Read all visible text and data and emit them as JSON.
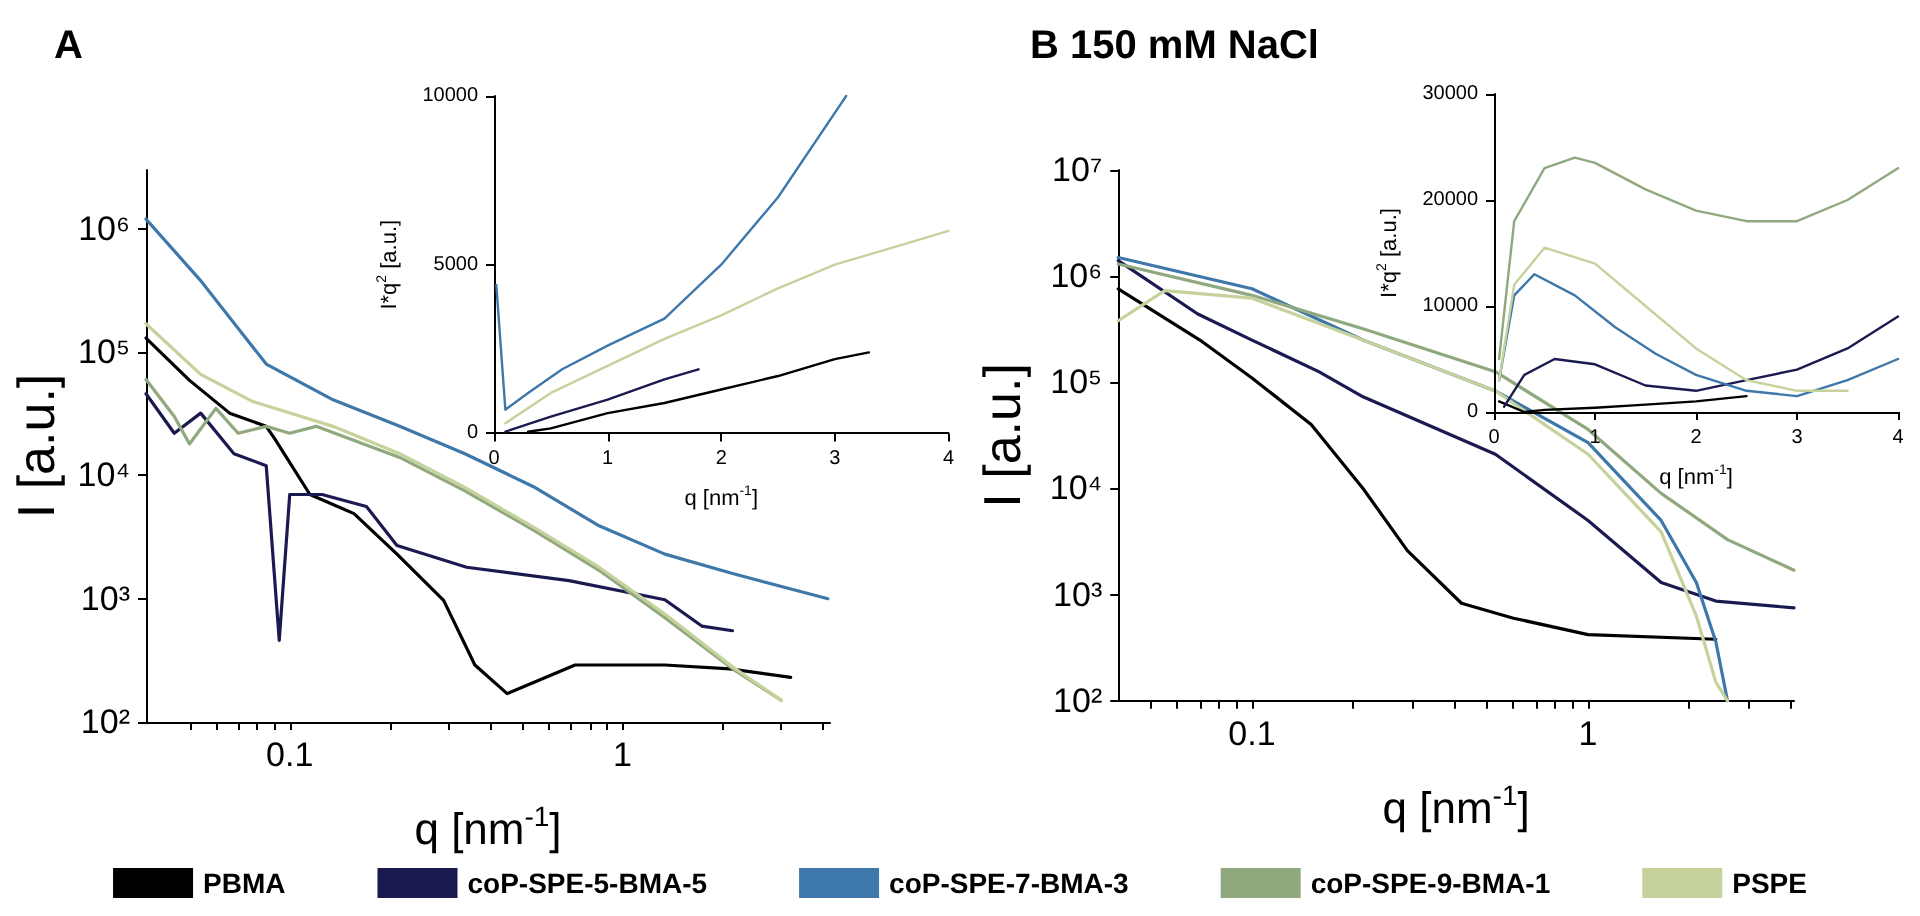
{
  "chart_data": [
    {
      "type": "line",
      "title": "A",
      "xlabel": "q [nm$^{-1}$]",
      "ylabel": "I [a.u.]",
      "log": "xy",
      "grid": false,
      "marker": "none",
      "legend": "bottom",
      "xlim": [
        0.037,
        4.2
      ],
      "ylim": [
        100,
        3000000
      ],
      "xticks": [
        {
          "value": 0.05,
          "label": null
        },
        {
          "value": 0.06,
          "label": null
        },
        {
          "value": 0.07,
          "label": null
        },
        {
          "value": 0.08,
          "label": null
        },
        {
          "value": 0.09,
          "label": null
        },
        0.1,
        {
          "value": 0.2,
          "label": null
        },
        {
          "value": 0.3,
          "label": null
        },
        {
          "value": 0.4,
          "label": null
        },
        {
          "value": 0.5,
          "label": null
        },
        {
          "value": 0.6,
          "label": null
        },
        {
          "value": 0.7,
          "label": null
        },
        {
          "value": 0.8,
          "label": null
        },
        {
          "value": 0.9,
          "label": null
        },
        1,
        {
          "value": 2,
          "label": null
        },
        {
          "value": 3,
          "label": null
        },
        {
          "value": 4,
          "label": null
        }
      ],
      "yticks": [
        {
          "value": 100,
          "label": "10²"
        },
        {
          "value": 1000,
          "label": "10³"
        },
        {
          "value": 10000,
          "label": "10⁴"
        },
        {
          "value": 100000,
          "label": "10⁵"
        },
        {
          "value": 1000000,
          "label": "10⁶"
        }
      ],
      "series": [
        {
          "name": "PBMA",
          "color": "#000000",
          "x": [
            0.037,
            0.05,
            0.066,
            0.085,
            0.09,
            0.115,
            0.156,
            0.21,
            0.29,
            0.36,
            0.45,
            0.72,
            1.34,
            2.1,
            3.2
          ],
          "values": [
            130000,
            59000,
            32000,
            25000,
            20000,
            7000,
            4900,
            2300,
            970,
            290,
            170,
            290,
            290,
            270,
            230
          ]
        },
        {
          "name": "coP-SPE-5-BMA-5",
          "color": "#1b1a50",
          "x": [
            0.037,
            0.045,
            0.054,
            0.068,
            0.085,
            0.093,
            0.1,
            0.125,
            0.17,
            0.21,
            0.34,
            0.69,
            1.34,
            1.73,
            2.14
          ],
          "values": [
            46000,
            22000,
            32000,
            15000,
            12000,
            460,
            7000,
            7000,
            5600,
            2700,
            1800,
            1400,
            980,
            600,
            550
          ]
        },
        {
          "name": "coP-SPE-7-BMA-3",
          "color": "#3e77a9",
          "x": [
            0.037,
            0.054,
            0.085,
            0.135,
            0.214,
            0.336,
            0.54,
            0.85,
            1.34,
            2.14,
            4.14
          ],
          "values": [
            1200000,
            380000,
            80000,
            41000,
            25000,
            15000,
            8100,
            3900,
            2300,
            1600,
            1000
          ]
        },
        {
          "name": "coP-SPE-9-BMA-1",
          "color": "#8fa87e",
          "x": [
            0.037,
            0.045,
            0.05,
            0.06,
            0.07,
            0.085,
            0.1,
            0.12,
            0.214,
            0.336,
            0.54,
            0.85,
            1.34,
            2.14,
            3.0
          ],
          "values": [
            60000,
            30000,
            18000,
            35000,
            22000,
            25000,
            22000,
            25000,
            14000,
            7500,
            3600,
            1700,
            700,
            270,
            150
          ]
        },
        {
          "name": "PSPE",
          "color": "#c6d29c",
          "x": [
            0.037,
            0.054,
            0.077,
            0.135,
            0.214,
            0.336,
            0.54,
            0.85,
            1.34,
            2.14,
            3.0
          ],
          "values": [
            170000,
            66000,
            40000,
            25000,
            15000,
            8000,
            3800,
            1800,
            750,
            280,
            150
          ]
        }
      ]
    },
    {
      "type": "line",
      "xlabel": "q [nm$^{-1}$]",
      "ylabel": "I*q$^{2}$ [a.u.]",
      "grid": false,
      "marker": "none",
      "xlim": [
        0,
        4
      ],
      "ylim": [
        0,
        10000
      ],
      "xticks": [
        0,
        1,
        2,
        3,
        4
      ],
      "yticks": [
        0,
        5000,
        10000
      ],
      "series": [
        {
          "color": "#000000",
          "x": [
            0.3,
            0.5,
            1,
            1.5,
            2,
            2.5,
            3,
            3.3
          ],
          "values": [
            50,
            150,
            600,
            900,
            1300,
            1700,
            2200,
            2400
          ]
        },
        {
          "color": "#1b1a50",
          "x": [
            0.1,
            0.5,
            1,
            1.5,
            1.8
          ],
          "values": [
            50,
            500,
            1000,
            1600,
            1900
          ]
        },
        {
          "color": "#3e77a9",
          "x": [
            0.02,
            0.1,
            0.3,
            0.6,
            1,
            1.5,
            2,
            2.5,
            3,
            3.1
          ],
          "values": [
            4400,
            700,
            1200,
            1900,
            2600,
            3400,
            5000,
            7000,
            9500,
            10000
          ]
        },
        {
          "color": "#c6d29c",
          "x": [
            0.1,
            0.5,
            1,
            1.5,
            2,
            2.5,
            3,
            3.5,
            4
          ],
          "values": [
            300,
            1200,
            2000,
            2800,
            3500,
            4300,
            5000,
            5500,
            6000
          ]
        }
      ]
    },
    {
      "type": "line",
      "title": "B 150 mM NaCl",
      "xlabel": "q [nm$^{-1}$]",
      "ylabel": "I [a.u.]",
      "log": "xy",
      "grid": false,
      "marker": "none",
      "xlim": [
        0.04,
        4.1
      ],
      "ylim": [
        100,
        10000000
      ],
      "xticks": [
        {
          "value": 0.05,
          "label": null
        },
        {
          "value": 0.06,
          "label": null
        },
        {
          "value": 0.07,
          "label": null
        },
        {
          "value": 0.08,
          "label": null
        },
        {
          "value": 0.09,
          "label": null
        },
        0.1,
        {
          "value": 0.2,
          "label": null
        },
        {
          "value": 0.3,
          "label": null
        },
        {
          "value": 0.4,
          "label": null
        },
        {
          "value": 0.5,
          "label": null
        },
        {
          "value": 0.6,
          "label": null
        },
        {
          "value": 0.7,
          "label": null
        },
        {
          "value": 0.8,
          "label": null
        },
        {
          "value": 0.9,
          "label": null
        },
        1,
        {
          "value": 2,
          "label": null
        },
        {
          "value": 3,
          "label": null
        },
        {
          "value": 4,
          "label": null
        }
      ],
      "yticks": [
        {
          "value": 100,
          "label": "10²"
        },
        {
          "value": 1000,
          "label": "10³"
        },
        {
          "value": 10000,
          "label": "10⁴"
        },
        {
          "value": 100000,
          "label": "10⁵"
        },
        {
          "value": 1000000,
          "label": "10⁶"
        },
        {
          "value": 10000000,
          "label": "10⁷"
        }
      ],
      "series": [
        {
          "color": "#000000",
          "x": [
            0.04,
            0.07,
            0.1,
            0.15,
            0.214,
            0.29,
            0.42,
            0.6,
            1,
            2.4
          ],
          "values": [
            760000,
            250000,
            110000,
            40000,
            10000,
            2600,
            830,
            600,
            420,
            380
          ]
        },
        {
          "color": "#1b1a50",
          "x": [
            0.04,
            0.069,
            0.1,
            0.158,
            0.214,
            0.53,
            1,
            1.65,
            2.4,
            4.1
          ],
          "values": [
            1400000,
            440000,
            250000,
            126000,
            73000,
            21000,
            5000,
            1300,
            870,
            750
          ]
        },
        {
          "color": "#3e77a9",
          "x": [
            0.04,
            0.1,
            0.214,
            0.53,
            1,
            1.65,
            2.1,
            2.4,
            2.6
          ],
          "values": [
            1500000,
            760000,
            250000,
            83000,
            27000,
            5000,
            1300,
            360,
            100
          ]
        },
        {
          "color": "#8fa87e",
          "x": [
            0.04,
            0.1,
            0.214,
            0.53,
            1,
            1.65,
            2.6,
            4.1
          ],
          "values": [
            1300000,
            660000,
            320000,
            126000,
            36000,
            9000,
            3300,
            1700
          ]
        },
        {
          "color": "#c6d29c",
          "x": [
            0.04,
            0.055,
            0.1,
            0.214,
            0.53,
            1,
            1.65,
            2.1,
            2.4,
            2.6
          ],
          "values": [
            380000,
            730000,
            620000,
            250000,
            83000,
            21000,
            3900,
            630,
            150,
            100
          ]
        }
      ]
    },
    {
      "type": "line",
      "xlabel": "q [nm$^{-1}$]",
      "ylabel": "I*q$^{2}$ [a.u.]",
      "grid": false,
      "marker": "none",
      "xlim": [
        0,
        4
      ],
      "ylim": [
        0,
        30000
      ],
      "xticks": [
        0,
        1,
        2,
        3,
        4
      ],
      "yticks": [
        0,
        10000,
        20000,
        30000
      ],
      "series": [
        {
          "color": "#000000",
          "x": [
            0.05,
            0.3,
            0.5,
            1,
            1.5,
            2,
            2.5
          ],
          "values": [
            1000,
            0,
            200,
            400,
            700,
            1000,
            1500
          ]
        },
        {
          "color": "#1b1a50",
          "x": [
            0.1,
            0.3,
            0.6,
            1,
            1.5,
            2,
            2.5,
            3,
            3.5,
            4
          ],
          "values": [
            500,
            3500,
            5000,
            4500,
            2500,
            2000,
            3000,
            4000,
            6000,
            9000
          ]
        },
        {
          "color": "#3e77a9",
          "x": [
            0.05,
            0.2,
            0.4,
            0.8,
            1.2,
            1.6,
            2,
            2.5,
            3,
            3.5,
            4
          ],
          "values": [
            3000,
            11000,
            13000,
            11000,
            8000,
            5500,
            3500,
            2000,
            1500,
            3000,
            5000
          ]
        },
        {
          "color": "#8fa87e",
          "x": [
            0.05,
            0.2,
            0.5,
            0.8,
            1,
            1.5,
            2,
            2.5,
            3,
            3.5,
            4
          ],
          "values": [
            5000,
            18000,
            23000,
            24000,
            23500,
            21000,
            19000,
            18000,
            18000,
            20000,
            23000
          ]
        },
        {
          "color": "#c6d29c",
          "x": [
            0.05,
            0.2,
            0.5,
            1,
            1.5,
            2,
            2.5,
            3,
            3.5
          ],
          "values": [
            3000,
            12000,
            15500,
            14000,
            10000,
            6000,
            3000,
            2000,
            2000
          ]
        }
      ]
    }
  ]
}
